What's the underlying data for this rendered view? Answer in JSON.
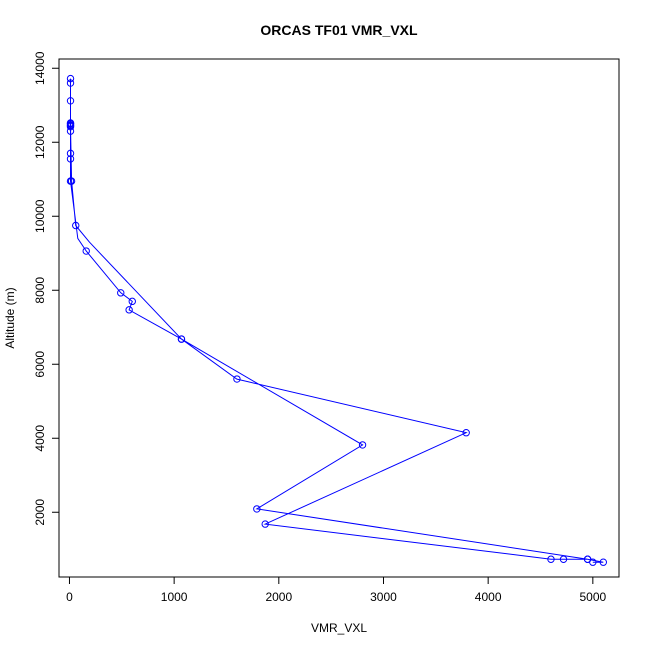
{
  "chart_data": {
    "type": "line",
    "title": "ORCAS TF01 VMR_VXL",
    "xlabel": "VMR_VXL",
    "ylabel": "Altitude (m)",
    "xlim": [
      -100,
      5250
    ],
    "ylim": [
      250,
      14250
    ],
    "xticks": [
      0,
      1000,
      2000,
      3000,
      4000,
      5000
    ],
    "yticks": [
      2000,
      4000,
      6000,
      8000,
      10000,
      12000,
      14000
    ],
    "grid": false,
    "series": [
      {
        "color": "#0000ff",
        "marker": "open-circle",
        "points": [
          {
            "x": 5000,
            "y": 650
          },
          {
            "x": 5100,
            "y": 650
          },
          {
            "x": 4950,
            "y": 730
          },
          {
            "x": 4720,
            "y": 730
          },
          {
            "x": 4600,
            "y": 730
          },
          {
            "x": 1870,
            "y": 1680
          },
          {
            "x": 3790,
            "y": 4150
          },
          {
            "x": 1600,
            "y": 5600
          },
          {
            "x": 1070,
            "y": 6680
          },
          {
            "x": 570,
            "y": 7470
          },
          {
            "x": 600,
            "y": 7700
          },
          {
            "x": 490,
            "y": 7930
          },
          {
            "x": 160,
            "y": 9060
          },
          {
            "x": 80,
            "y": 9400
          },
          {
            "x": 10,
            "y": 10950
          },
          {
            "x": 10,
            "y": 11550
          },
          {
            "x": 10,
            "y": 11700
          },
          {
            "x": 10,
            "y": 12300
          },
          {
            "x": 10,
            "y": 12470
          },
          {
            "x": 10,
            "y": 12520
          },
          {
            "x": 10,
            "y": 13120
          },
          {
            "x": 10,
            "y": 13600
          },
          {
            "x": 10,
            "y": 13720
          },
          {
            "x": 10,
            "y": 12500
          },
          {
            "x": 10,
            "y": 12450
          },
          {
            "x": 10,
            "y": 12420
          },
          {
            "x": 20,
            "y": 10950
          },
          {
            "x": 60,
            "y": 9750
          },
          {
            "x": 190,
            "y": 9300
          },
          {
            "x": 1070,
            "y": 6680
          },
          {
            "x": 2800,
            "y": 3820
          },
          {
            "x": 1790,
            "y": 2090
          },
          {
            "x": 4950,
            "y": 730
          }
        ],
        "no_marker_indices": [
          13,
          28
        ]
      }
    ]
  }
}
